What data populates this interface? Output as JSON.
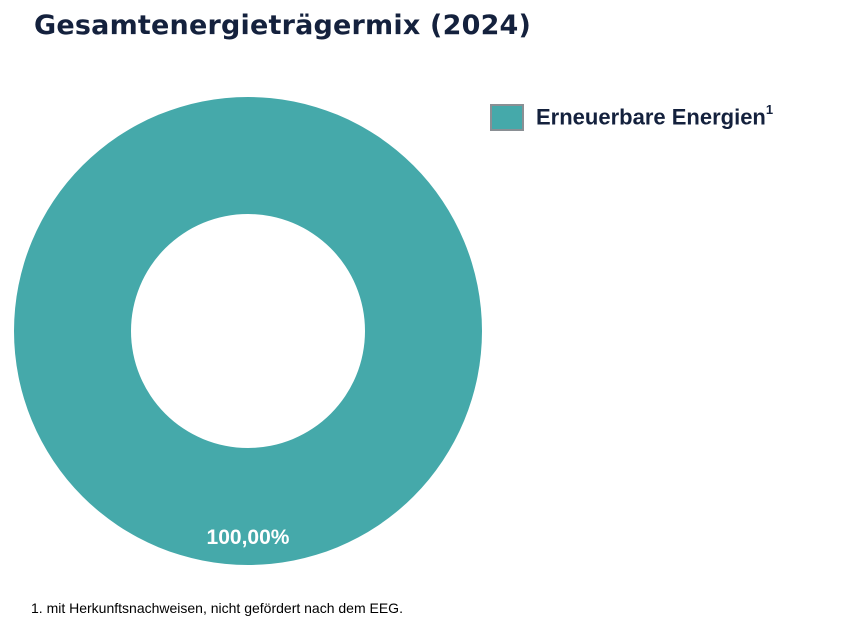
{
  "chart_data": {
    "type": "pie",
    "title": "Gesamtenergieträgermix (2024)",
    "slices": [
      {
        "label": "Erneuerbare Energien",
        "footnote_ref": "1",
        "value": 100,
        "value_label": "100,00%",
        "color": "#45a9aa"
      }
    ],
    "legend_position": "top-right",
    "footnote": "1. mit Herkunftsnachweisen, nicht gefördert nach dem EEG."
  }
}
